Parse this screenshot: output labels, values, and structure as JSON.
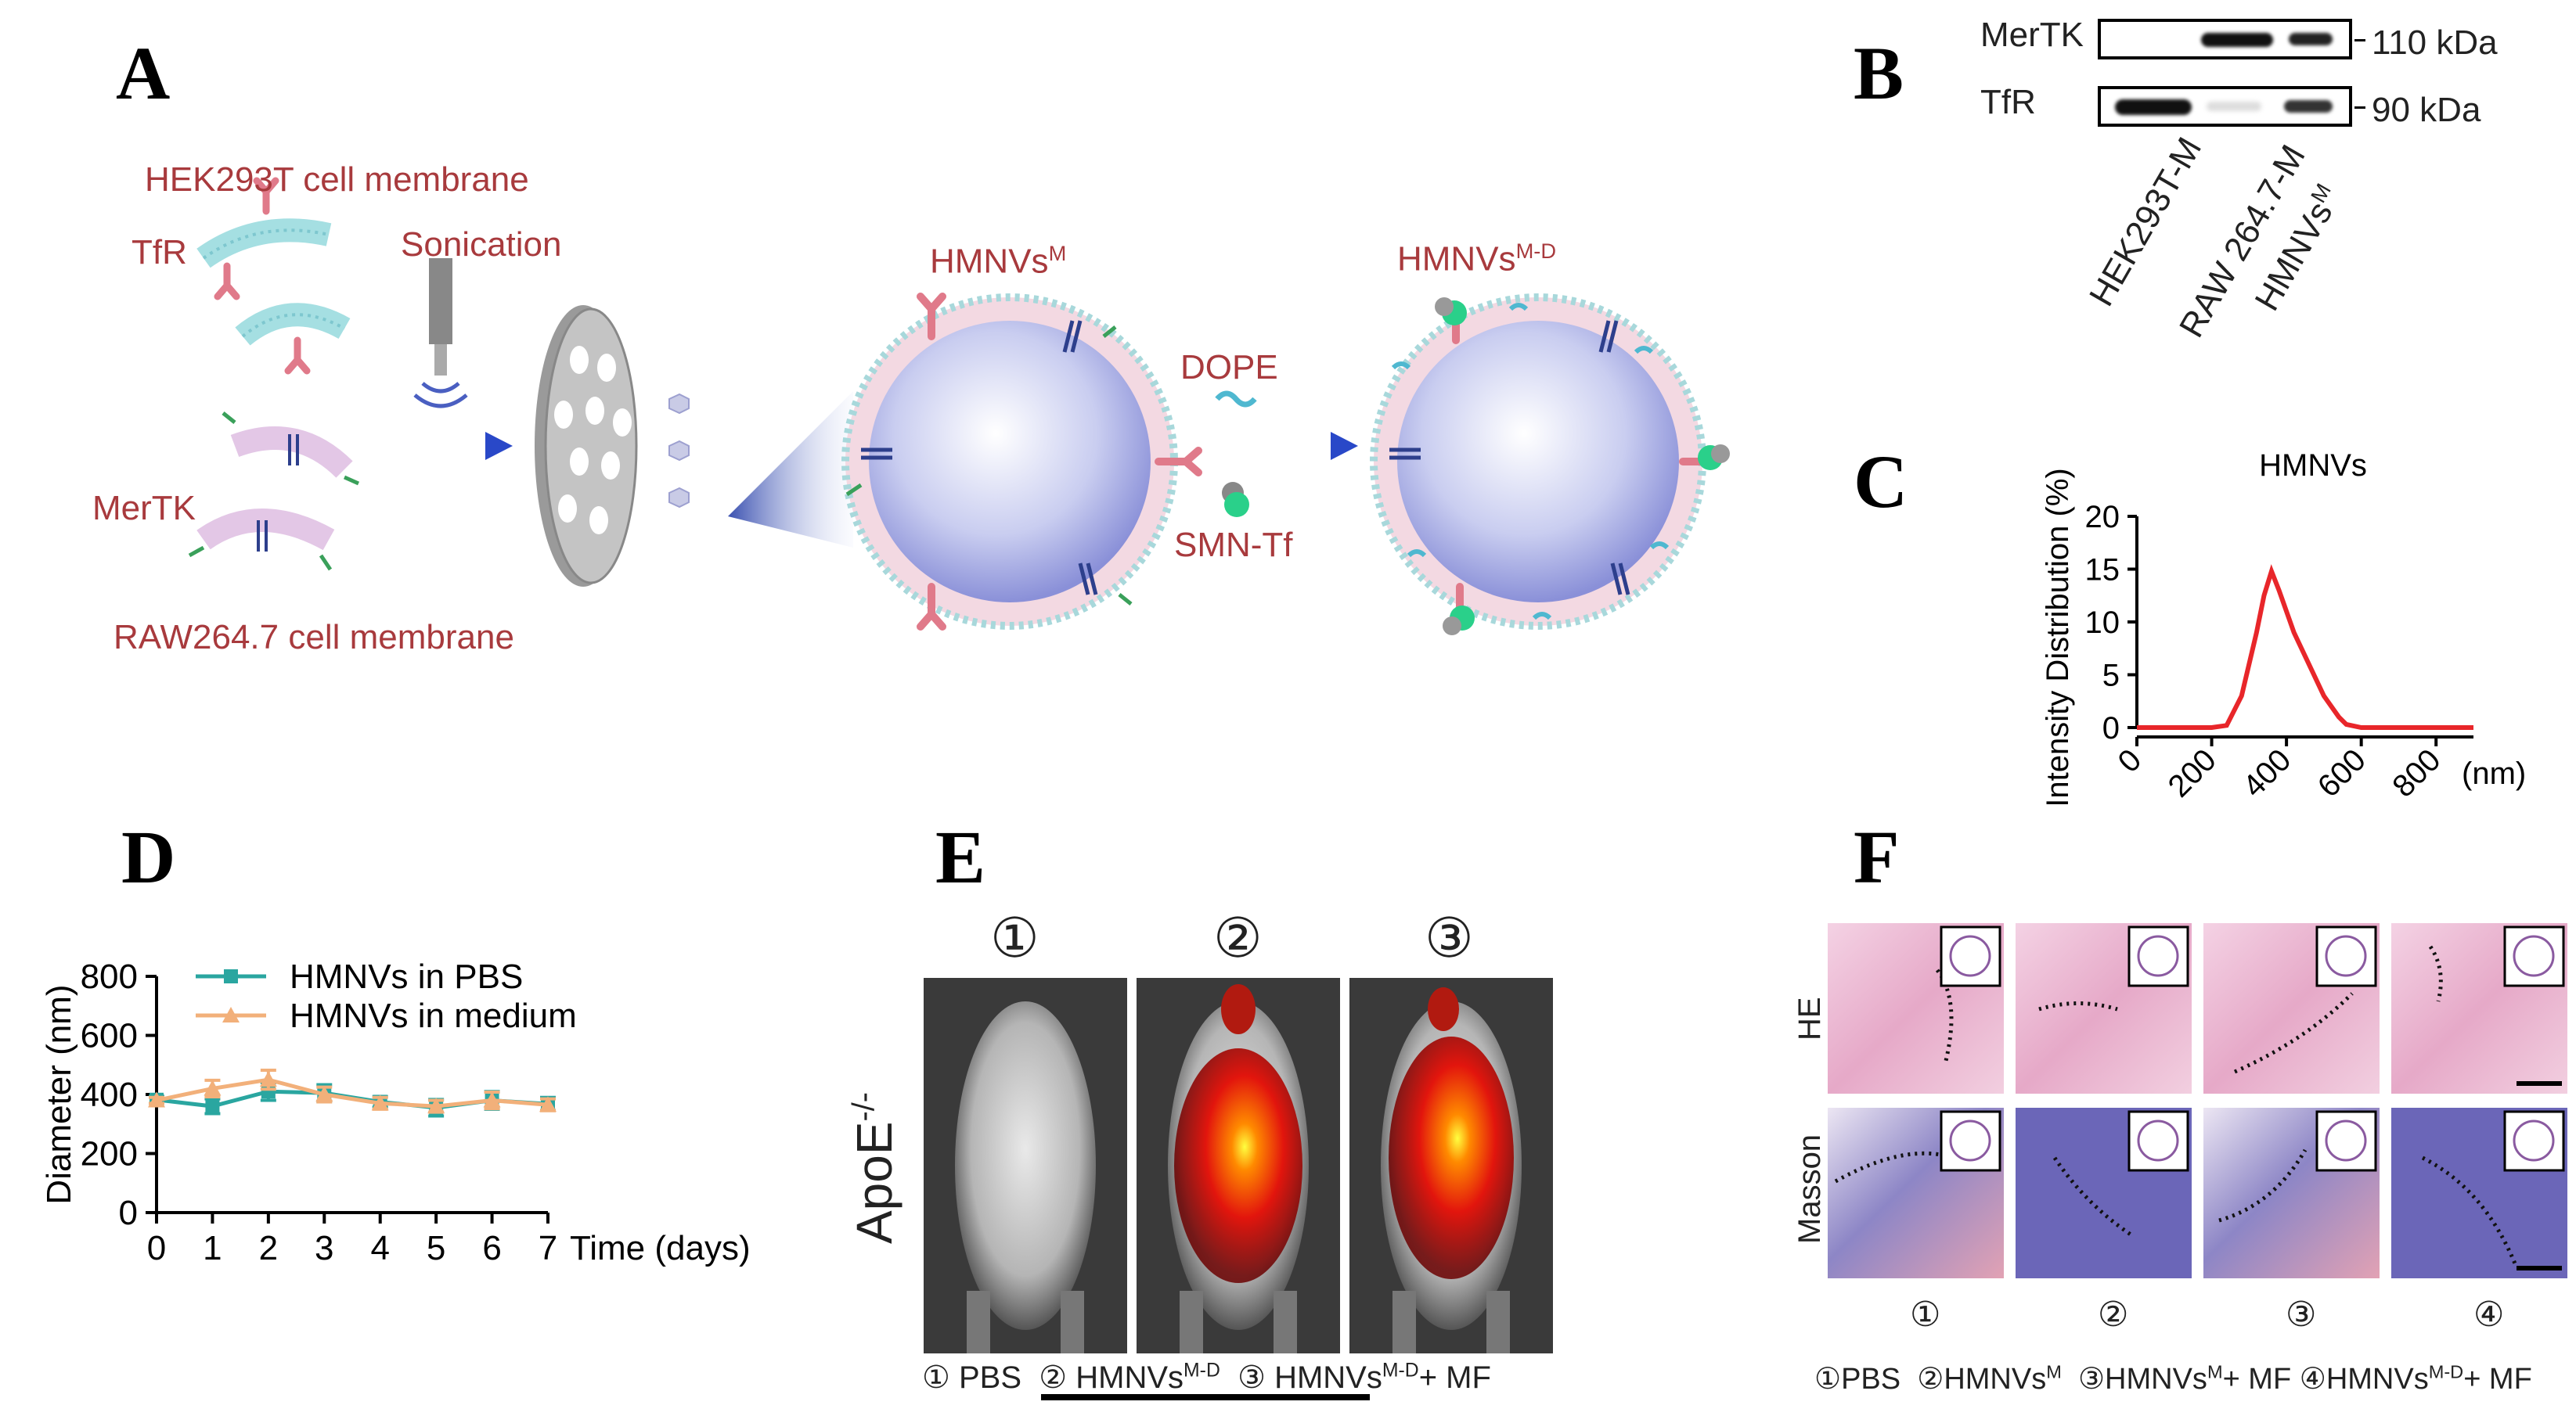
{
  "panels": {
    "a": "A",
    "b": "B",
    "c": "C",
    "d": "D",
    "e": "E",
    "f": "F"
  },
  "panel_a": {
    "hek_membrane": "HEK293T cell membrane",
    "tfr": "TfR",
    "sonication": "Sonication",
    "mertk": "MerTK",
    "raw_membrane": "RAW264.7 cell membrane",
    "hmnvs_m_base": "HMNVs",
    "hmnvs_m_sup": "M",
    "dope": "DOPE",
    "smn_tf": "SMN-Tf",
    "hmnvs_md_base": "HMNVs",
    "hmnvs_md_sup": "M-D"
  },
  "panel_b": {
    "rows": [
      {
        "protein": "MerTK",
        "mw": "110 kDa"
      },
      {
        "protein": "TfR",
        "mw": "90 kDa"
      }
    ],
    "lanes": [
      "HEK293T-M",
      "RAW 264.7-M",
      "HMNVs"
    ],
    "lane3_sup": "M"
  },
  "chart_data": [
    {
      "panel": "C",
      "type": "line",
      "title": "HMNVs",
      "xlabel": "(nm)",
      "ylabel": "Intensity Distribution (%)",
      "xlim": [
        0,
        900
      ],
      "ylim": [
        0,
        20
      ],
      "xticks": [
        "0",
        "200",
        "400",
        "600",
        "800"
      ],
      "yticks": [
        "0",
        "5",
        "10",
        "15",
        "20"
      ],
      "series": [
        {
          "color": "#e8262a",
          "x": [
            0,
            200,
            240,
            280,
            320,
            340,
            360,
            380,
            420,
            460,
            500,
            540,
            560,
            600,
            700,
            900
          ],
          "y": [
            0,
            0,
            0.2,
            3,
            9,
            12.5,
            14.8,
            13,
            9,
            6,
            3,
            1,
            0.3,
            0,
            0,
            0
          ]
        }
      ]
    },
    {
      "panel": "D",
      "type": "line",
      "xlabel": "Time (days)",
      "ylabel": "Diameter (nm)",
      "xlim": [
        0,
        7
      ],
      "ylim": [
        0,
        800
      ],
      "xticks": [
        "0",
        "1",
        "2",
        "3",
        "4",
        "5",
        "6",
        "7"
      ],
      "yticks": [
        "0",
        "200",
        "400",
        "600",
        "800"
      ],
      "legend": "top",
      "series": [
        {
          "name": "HMNVs in PBS",
          "color": "#2aa6a0",
          "x": [
            0,
            1,
            2,
            3,
            4,
            5,
            6,
            7
          ],
          "y": [
            382,
            360,
            410,
            405,
            375,
            355,
            380,
            368
          ],
          "err": [
            12,
            25,
            30,
            28,
            18,
            28,
            30,
            22
          ]
        },
        {
          "name": "HMNVs in medium",
          "color": "#f2b07a",
          "x": [
            0,
            1,
            2,
            3,
            4,
            5,
            6,
            7
          ],
          "y": [
            380,
            420,
            450,
            400,
            370,
            360,
            380,
            365
          ],
          "err": [
            10,
            28,
            32,
            25,
            20,
            20,
            28,
            20
          ]
        }
      ]
    }
  ],
  "panel_e": {
    "genotype_base": "ApoE",
    "genotype_sup": "-/-",
    "mouse_numbers": [
      "①",
      "②",
      "③"
    ],
    "caption": [
      {
        "n": "①",
        "base": "PBS",
        "sup": "",
        "tail": ""
      },
      {
        "n": "②",
        "base": "HMNVs",
        "sup": "M-D",
        "tail": ""
      },
      {
        "n": "③",
        "base": "HMNVs",
        "sup": "M-D",
        "tail": "+ MF"
      }
    ]
  },
  "panel_f": {
    "row_labels": [
      "HE",
      "Masson"
    ],
    "col_numbers": [
      "①",
      "②",
      "③",
      "④"
    ],
    "caption": [
      {
        "n": "①",
        "base": "PBS",
        "sup": "",
        "tail": ""
      },
      {
        "n": "②",
        "base": "HMNVs",
        "sup": "M",
        "tail": ""
      },
      {
        "n": "③",
        "base": "HMNVs",
        "sup": "M",
        "tail": "+ MF"
      },
      {
        "n": "④",
        "base": "HMNVs",
        "sup": "M-D",
        "tail": "+ MF"
      }
    ]
  },
  "colors": {
    "teal": "#2aa6a0",
    "orange": "#f2b07a",
    "red": "#e8262a",
    "label_red": "#a83a3d",
    "he_pink": "#e6a9c8",
    "masson_blue": "#6b66b8"
  }
}
